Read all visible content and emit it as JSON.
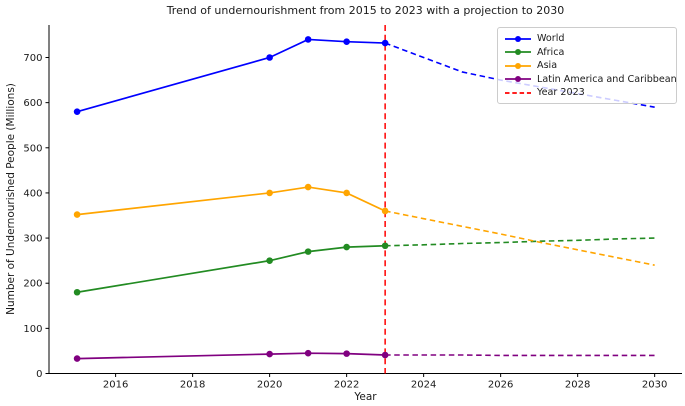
{
  "chart_data": {
    "type": "line",
    "title": "Trend of undernourishment from 2015 to 2023 with a projection to 2030",
    "xlabel": "Year",
    "ylabel": "Number of Undernourished People (Millions)",
    "x_ticks": [
      2016,
      2018,
      2020,
      2022,
      2024,
      2026,
      2028,
      2030
    ],
    "y_ticks": [
      0,
      100,
      200,
      300,
      400,
      500,
      600,
      700
    ],
    "xlim": [
      2014.27,
      2030.71
    ],
    "ylim": [
      0,
      772
    ],
    "grid": false,
    "legend_position": "upper right",
    "vline": {
      "x": 2023,
      "label": "Year 2023",
      "color": "#ff0000",
      "style": "dashed"
    },
    "series": [
      {
        "name": "World",
        "color": "#0000ff",
        "style": "solid",
        "marker": "circle",
        "x": [
          2015,
          2020,
          2021,
          2022,
          2023
        ],
        "values": [
          580,
          700,
          740,
          735,
          732
        ]
      },
      {
        "name": "Africa",
        "color": "#228b22",
        "style": "solid",
        "marker": "circle",
        "x": [
          2015,
          2020,
          2021,
          2022,
          2023
        ],
        "values": [
          180,
          250,
          270,
          280,
          283
        ]
      },
      {
        "name": "Asia",
        "color": "#ffa500",
        "style": "solid",
        "marker": "circle",
        "x": [
          2015,
          2020,
          2021,
          2022,
          2023
        ],
        "values": [
          352,
          400,
          413,
          400,
          360
        ]
      },
      {
        "name": "Latin America and Caribbean",
        "color": "#800080",
        "style": "solid",
        "marker": "circle",
        "x": [
          2015,
          2020,
          2021,
          2022,
          2023
        ],
        "values": [
          33,
          43,
          45,
          44,
          41
        ]
      }
    ],
    "projections": [
      {
        "name": "World projection",
        "color": "#0000ff",
        "style": "dashed",
        "x": [
          2023,
          2024,
          2025,
          2026,
          2027,
          2028,
          2029,
          2030
        ],
        "values": [
          732,
          700,
          668,
          650,
          635,
          620,
          605,
          590
        ]
      },
      {
        "name": "Africa projection",
        "color": "#228b22",
        "style": "dashed",
        "x": [
          2023,
          2024,
          2025,
          2026,
          2027,
          2028,
          2029,
          2030
        ],
        "values": [
          283,
          285,
          288,
          290,
          293,
          295,
          298,
          300
        ]
      },
      {
        "name": "Asia projection",
        "color": "#ffa500",
        "style": "dashed",
        "x": [
          2023,
          2024,
          2025,
          2026,
          2027,
          2028,
          2029,
          2030
        ],
        "values": [
          360,
          343,
          326,
          309,
          291,
          274,
          257,
          240
        ]
      },
      {
        "name": "Latin America and Caribbean projection",
        "color": "#800080",
        "style": "dashed",
        "x": [
          2023,
          2024,
          2025,
          2026,
          2027,
          2028,
          2029,
          2030
        ],
        "values": [
          41,
          41,
          41,
          40,
          40,
          40,
          40,
          40
        ]
      }
    ]
  },
  "legend": {
    "items": [
      {
        "label": "World",
        "color": "#0000ff",
        "type": "line-marker"
      },
      {
        "label": "Africa",
        "color": "#228b22",
        "type": "line-marker"
      },
      {
        "label": "Asia",
        "color": "#ffa500",
        "type": "line-marker"
      },
      {
        "label": "Latin America and Caribbean",
        "color": "#800080",
        "type": "line-marker"
      },
      {
        "label": "Year 2023",
        "color": "#ff0000",
        "type": "dashed-line"
      }
    ]
  }
}
